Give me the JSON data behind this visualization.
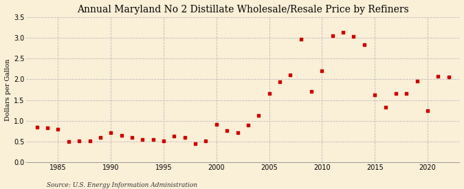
{
  "title": "Annual Maryland No 2 Distillate Wholesale/Resale Price by Refiners",
  "ylabel": "Dollars per Gallon",
  "source": "Source: U.S. Energy Information Administration",
  "background_color": "#faefd7",
  "marker_color": "#cc0000",
  "xlim": [
    1982,
    2023
  ],
  "ylim": [
    0.0,
    3.5
  ],
  "yticks": [
    0.0,
    0.5,
    1.0,
    1.5,
    2.0,
    2.5,
    3.0,
    3.5
  ],
  "xticks": [
    1985,
    1990,
    1995,
    2000,
    2005,
    2010,
    2015,
    2020
  ],
  "years": [
    1983,
    1984,
    1985,
    1986,
    1987,
    1988,
    1989,
    1990,
    1991,
    1992,
    1993,
    1994,
    1995,
    1996,
    1997,
    1998,
    1999,
    2000,
    2001,
    2002,
    2003,
    2004,
    2005,
    2006,
    2007,
    2008,
    2009,
    2010,
    2011,
    2012,
    2013,
    2014,
    2015,
    2016,
    2017,
    2018,
    2019,
    2020,
    2021,
    2022
  ],
  "values": [
    0.84,
    0.83,
    0.79,
    0.5,
    0.52,
    0.51,
    0.59,
    0.71,
    0.65,
    0.59,
    0.55,
    0.54,
    0.52,
    0.63,
    0.6,
    0.44,
    0.51,
    0.91,
    0.76,
    0.71,
    0.9,
    1.12,
    1.65,
    1.94,
    2.11,
    2.97,
    1.71,
    2.21,
    3.05,
    3.13,
    3.03,
    2.83,
    1.63,
    1.33,
    1.65,
    1.66,
    1.95,
    1.25,
    2.07,
    2.05
  ],
  "title_fontsize": 10,
  "ylabel_fontsize": 7,
  "tick_fontsize": 7,
  "source_fontsize": 6.5,
  "marker_size": 10
}
